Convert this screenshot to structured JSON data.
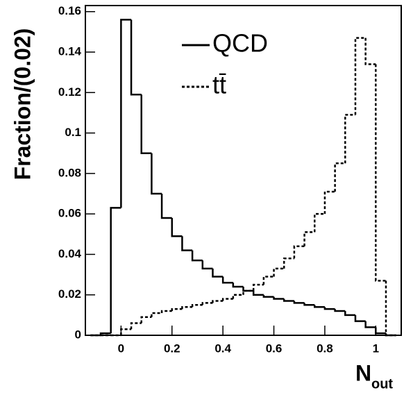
{
  "chart_data": {
    "type": "histogram",
    "ylabel": "Fraction/(0.02)",
    "xlabel": {
      "text": "N",
      "subscript": "out"
    },
    "bins": [
      -0.12,
      -0.08,
      -0.04,
      0,
      0.04,
      0.08,
      0.12,
      0.16,
      0.2,
      0.24,
      0.28,
      0.32,
      0.36,
      0.4,
      0.44,
      0.48,
      0.52,
      0.56,
      0.6,
      0.64,
      0.68,
      0.72,
      0.76,
      0.8,
      0.84,
      0.88,
      0.92,
      0.96,
      1.0,
      1.04,
      1.08
    ],
    "series": [
      {
        "name": "QCD",
        "color": "#000000",
        "dashed": false,
        "values": [
          0,
          0.001,
          0.063,
          0.156,
          0.119,
          0.09,
          0.07,
          0.058,
          0.049,
          0.042,
          0.037,
          0.033,
          0.029,
          0.026,
          0.024,
          0.022,
          0.02,
          0.019,
          0.018,
          0.017,
          0.016,
          0.015,
          0.014,
          0.013,
          0.012,
          0.01,
          0.007,
          0.004,
          0.001,
          0
        ]
      },
      {
        "name": "tt̄",
        "color": "#000000",
        "dashed": true,
        "values": [
          0,
          0,
          0,
          0.003,
          0.006,
          0.009,
          0.011,
          0.012,
          0.013,
          0.014,
          0.015,
          0.016,
          0.017,
          0.018,
          0.02,
          0.022,
          0.025,
          0.029,
          0.033,
          0.038,
          0.044,
          0.051,
          0.06,
          0.071,
          0.085,
          0.109,
          0.147,
          0.134,
          0.027,
          0
        ]
      }
    ],
    "xlim": [
      -0.14,
      1.1
    ],
    "ylim": [
      0,
      0.163
    ],
    "xticks": [
      0,
      0.2,
      0.4,
      0.6,
      0.8,
      1
    ],
    "yticks": [
      0,
      0.02,
      0.04,
      0.06,
      0.08,
      0.1,
      0.12,
      0.14,
      0.16
    ],
    "legend": "top-center"
  }
}
